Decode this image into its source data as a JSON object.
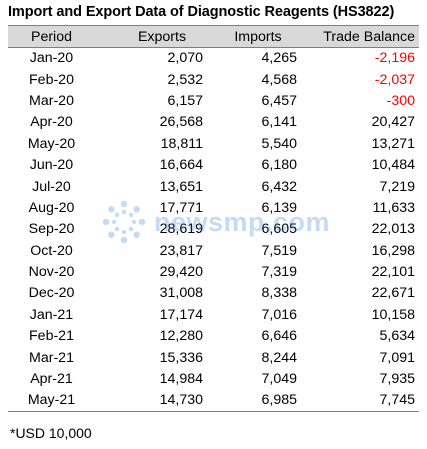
{
  "title": "Import and Export Data of Diagnostic Reagents (HS3822)",
  "columns": {
    "period": "Period",
    "exports": "Exports",
    "imports": "Imports",
    "trade_balance": "Trade Balance"
  },
  "rows": [
    {
      "period": "Jan-20",
      "exports": "2,070",
      "imports": "4,265",
      "trade_balance": "-2,196"
    },
    {
      "period": "Feb-20",
      "exports": "2,532",
      "imports": "4,568",
      "trade_balance": "-2,037"
    },
    {
      "period": "Mar-20",
      "exports": "6,157",
      "imports": "6,457",
      "trade_balance": "-300"
    },
    {
      "period": "Apr-20",
      "exports": "26,568",
      "imports": "6,141",
      "trade_balance": "20,427"
    },
    {
      "period": "May-20",
      "exports": "18,811",
      "imports": "5,540",
      "trade_balance": "13,271"
    },
    {
      "period": "Jun-20",
      "exports": "16,664",
      "imports": "6,180",
      "trade_balance": "10,484"
    },
    {
      "period": "Jul-20",
      "exports": "13,651",
      "imports": "6,432",
      "trade_balance": "7,219"
    },
    {
      "period": "Aug-20",
      "exports": "17,771",
      "imports": "6,139",
      "trade_balance": "11,633"
    },
    {
      "period": "Sep-20",
      "exports": "28,619",
      "imports": "6,605",
      "trade_balance": "22,013"
    },
    {
      "period": "Oct-20",
      "exports": "23,817",
      "imports": "7,519",
      "trade_balance": "16,298"
    },
    {
      "period": "Nov-20",
      "exports": "29,420",
      "imports": "7,319",
      "trade_balance": "22,101"
    },
    {
      "period": "Dec-20",
      "exports": "31,008",
      "imports": "8,338",
      "trade_balance": "22,671"
    },
    {
      "period": "Jan-21",
      "exports": "17,174",
      "imports": "7,016",
      "trade_balance": "10,158"
    },
    {
      "period": "Feb-21",
      "exports": "12,280",
      "imports": "6,646",
      "trade_balance": "5,634"
    },
    {
      "period": "Mar-21",
      "exports": "15,336",
      "imports": "8,244",
      "trade_balance": "7,091"
    },
    {
      "period": "Apr-21",
      "exports": "14,984",
      "imports": "7,049",
      "trade_balance": "7,935"
    },
    {
      "period": "May-21",
      "exports": "14,730",
      "imports": "6,985",
      "trade_balance": "7,745"
    }
  ],
  "footnote": "*USD 10,000",
  "watermark": {
    "text": "newsmp.com",
    "logo_icon": "newsmp-logo-icon",
    "color": "#2e7fd6"
  },
  "colors": {
    "header_background": "#d9d9d9",
    "negative_value": "#ff0000",
    "rule_lines": "#7f7f7f"
  }
}
